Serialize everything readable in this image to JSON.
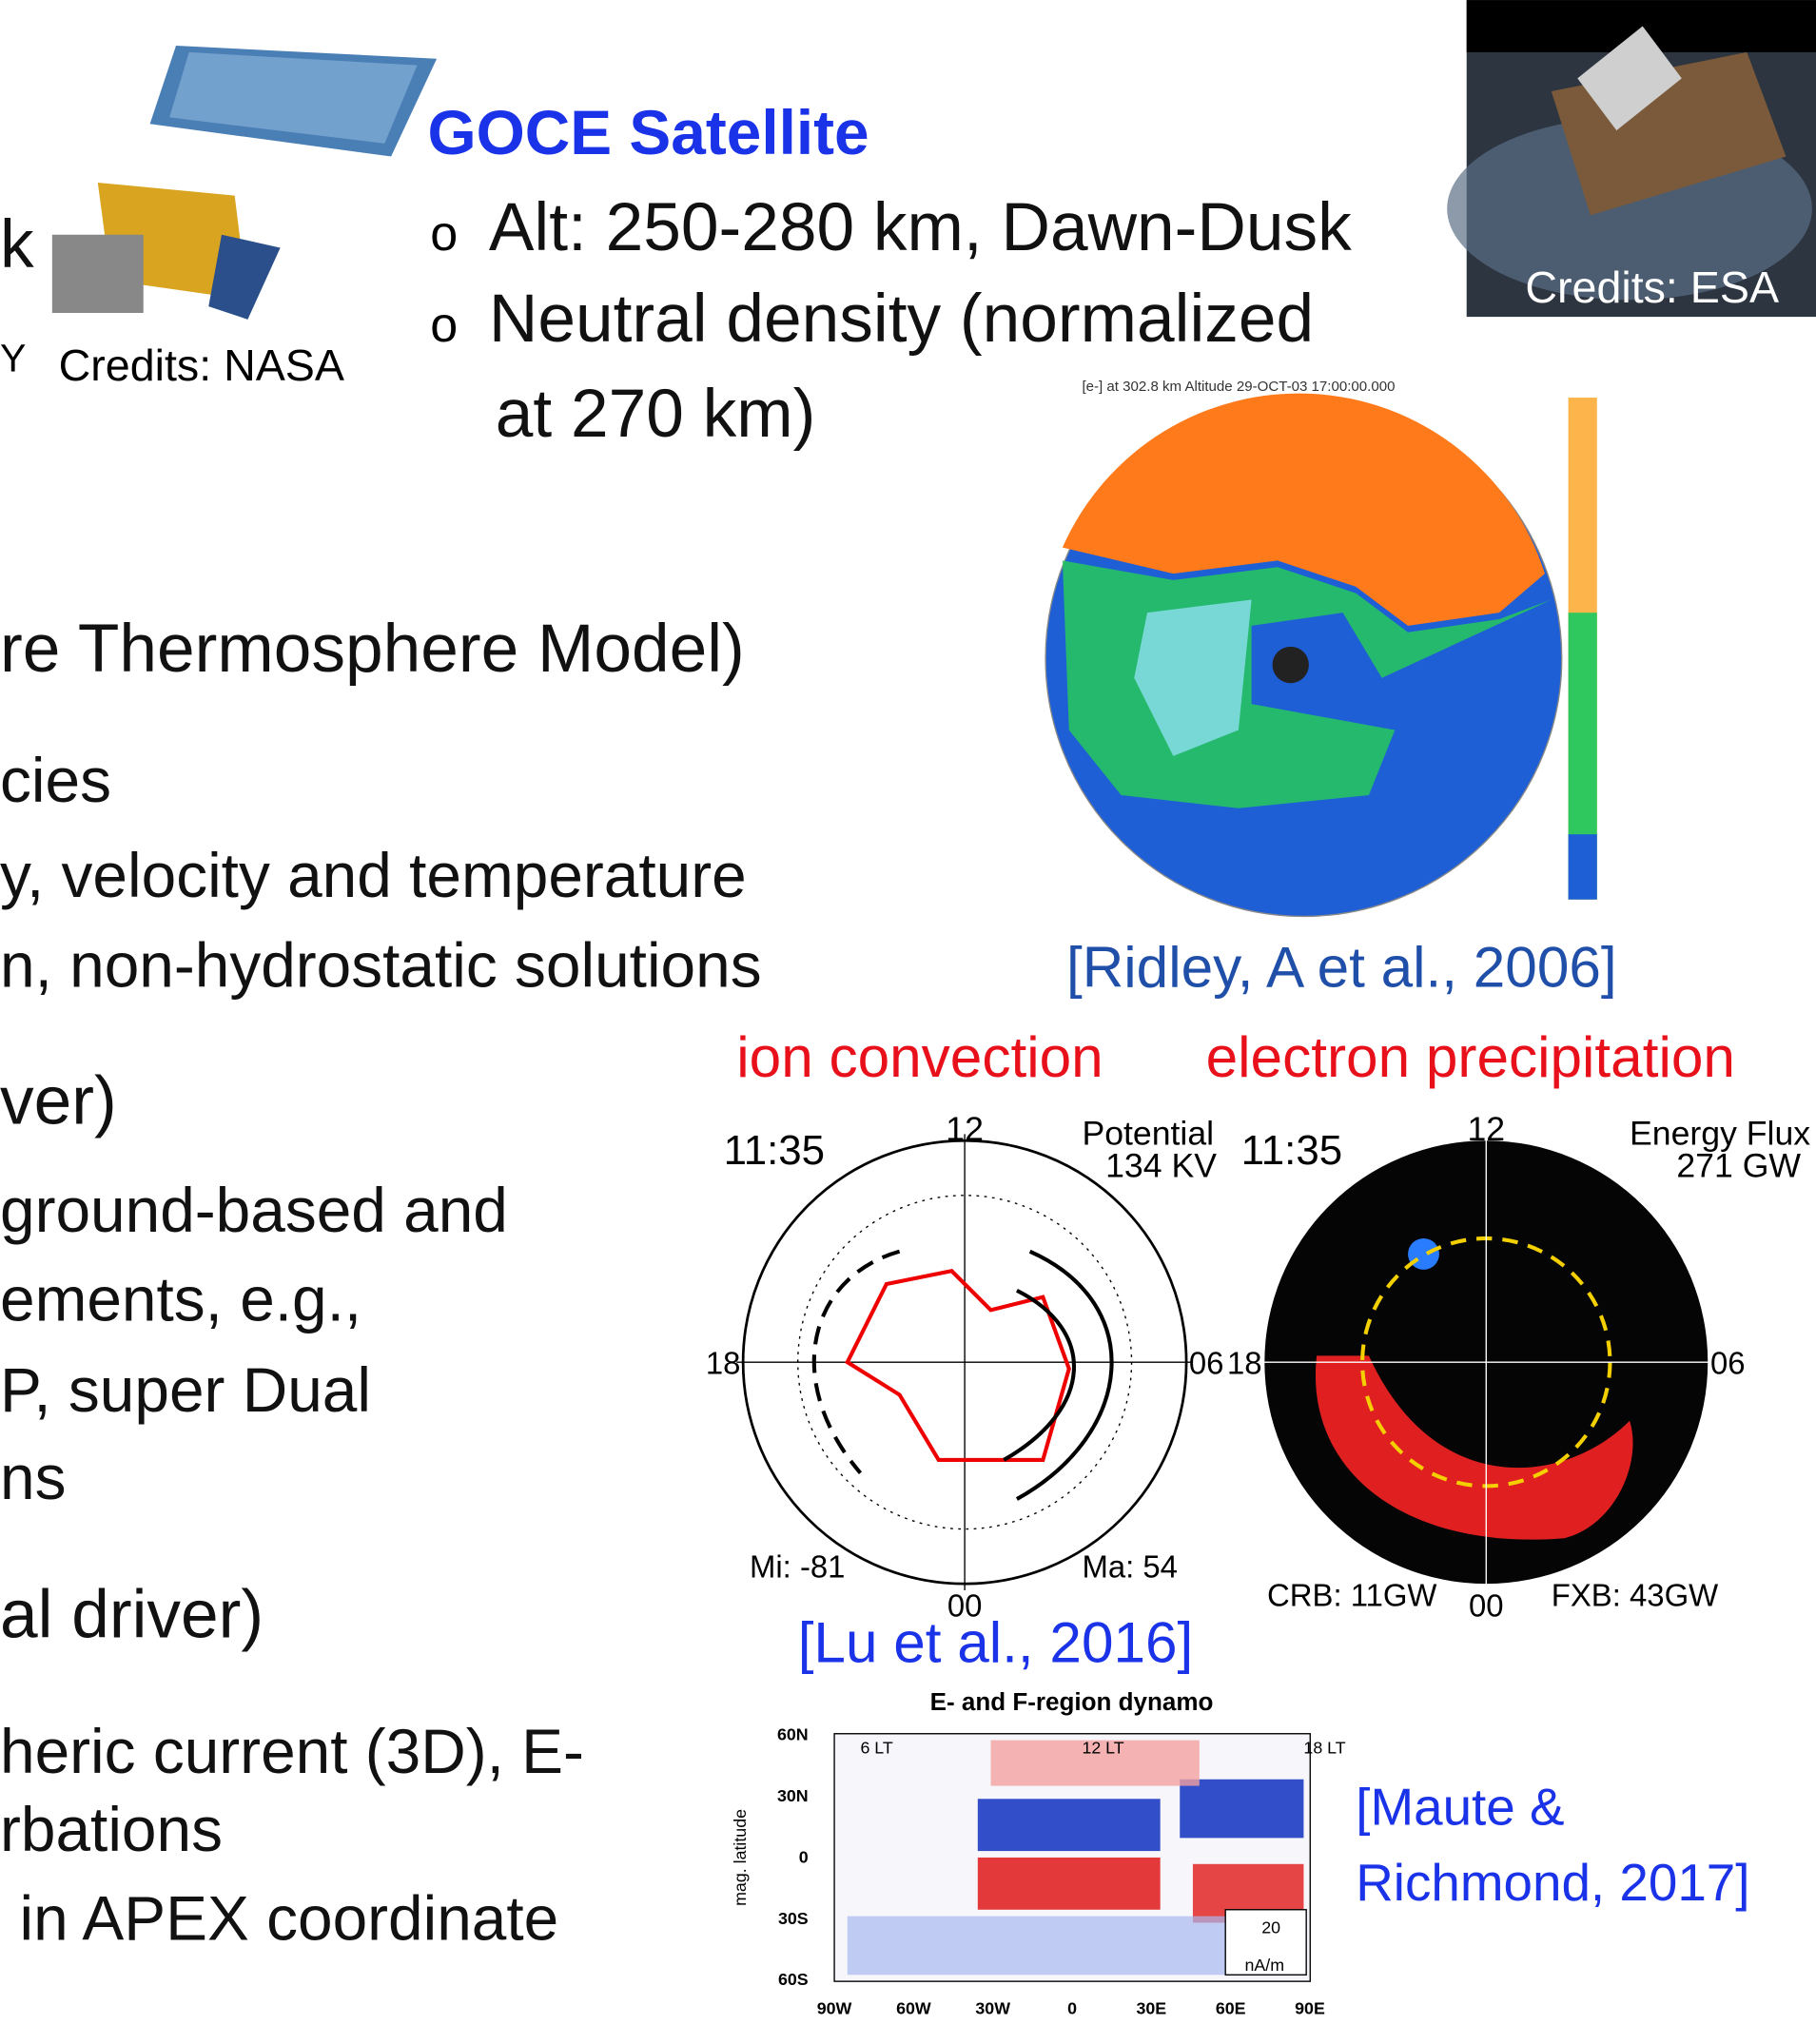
{
  "nasa": {
    "fragments": [
      "k",
      "Y"
    ],
    "credit": "Credits: NASA"
  },
  "goce": {
    "title": "GOCE Satellite",
    "bullet": "o",
    "bullets": [
      "Alt: 250-280 km, Dawn-Dusk",
      "Neutral density (normalized",
      "at 270 km)"
    ],
    "credit": "Credits: ESA"
  },
  "body": {
    "lines": [
      "re Thermosphere Model)",
      "cies",
      "y, velocity and temperature",
      "n, non-hydrostatic solutions",
      "ver)",
      "ground-based and",
      "ements, e.g.,",
      "P, super Dual",
      "ns",
      "al driver)",
      "heric current (3D), E-",
      "rbations",
      "in APEX coordinate"
    ]
  },
  "ridley": {
    "plot_title": "[e-] at 302.8 km Altitude 29-OCT-03 17:00:00.000",
    "citation": "[Ridley, A et al., 2006]"
  },
  "lu": {
    "headers": [
      "ion convection",
      "electron precipitation"
    ],
    "left": {
      "time": "11:35",
      "top": "12",
      "right_title": [
        "Potential",
        "134 KV"
      ],
      "left_label": "18",
      "right_label": "06",
      "bottom": "00",
      "min": "Mi: -81",
      "max": "Ma: 54"
    },
    "right": {
      "time": "11:35",
      "top": "12",
      "right_title": [
        "Energy Flux",
        "271 GW"
      ],
      "left_label": "18",
      "right_label": "06",
      "bottom": "00",
      "min": "CRB: 11GW",
      "max": "FXB: 43GW"
    },
    "citation": "[Lu et al., 2016]"
  },
  "maute": {
    "title": "E- and F-region dynamo",
    "ylabel": "mag. latitude",
    "yticks": [
      "60N",
      "30N",
      "0",
      "30S",
      "60S"
    ],
    "xticks": [
      "90W",
      "60W",
      "30W",
      "0",
      "30E",
      "60E",
      "90E"
    ],
    "lt": [
      "6 LT",
      "12 LT",
      "18 LT"
    ],
    "scale": [
      "20",
      "nA/m"
    ],
    "citation": [
      "[Maute &",
      "Richmond, 2017]"
    ]
  }
}
